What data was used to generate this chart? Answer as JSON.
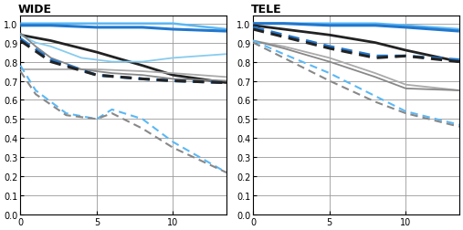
{
  "title_wide": "WIDE",
  "title_tele": "TELE",
  "xlim": [
    0,
    13.5
  ],
  "ylim": [
    0,
    1.04
  ],
  "xticks": [
    0,
    5,
    10
  ],
  "yticks": [
    0,
    0.1,
    0.2,
    0.3,
    0.4,
    0.5,
    0.6,
    0.7,
    0.8,
    0.9,
    1.0
  ],
  "wide_curves": [
    {
      "x": [
        0,
        2,
        5,
        8,
        10,
        13.5
      ],
      "y": [
        1.0,
        1.0,
        1.0,
        1.0,
        1.0,
        0.97
      ],
      "color": "#5bb8f5",
      "lw": 1.8,
      "ls": "solid"
    },
    {
      "x": [
        0,
        2,
        5,
        8,
        10,
        13.5
      ],
      "y": [
        0.99,
        0.99,
        0.98,
        0.98,
        0.97,
        0.96
      ],
      "color": "#2277cc",
      "lw": 2.2,
      "ls": "solid"
    },
    {
      "x": [
        0,
        2,
        5,
        8,
        10,
        13.5
      ],
      "y": [
        0.94,
        0.91,
        0.85,
        0.78,
        0.73,
        0.69
      ],
      "color": "#222222",
      "lw": 2.0,
      "ls": "solid"
    },
    {
      "x": [
        0,
        1,
        2,
        4,
        6,
        8,
        10,
        13.5
      ],
      "y": [
        0.94,
        0.9,
        0.88,
        0.82,
        0.8,
        0.8,
        0.82,
        0.84
      ],
      "color": "#88ccee",
      "lw": 1.3,
      "ls": "solid"
    },
    {
      "x": [
        0,
        2,
        5,
        8,
        10,
        13.5
      ],
      "y": [
        0.76,
        0.76,
        0.76,
        0.75,
        0.74,
        0.72
      ],
      "color": "#aaaaaa",
      "lw": 1.3,
      "ls": "solid"
    },
    {
      "x": [
        0,
        1,
        2,
        4,
        6,
        8,
        10,
        13.5
      ],
      "y": [
        0.95,
        0.88,
        0.82,
        0.76,
        0.74,
        0.73,
        0.71,
        0.7
      ],
      "color": "#888888",
      "lw": 1.3,
      "ls": "solid"
    },
    {
      "x": [
        0,
        2,
        5,
        8,
        10,
        13.5
      ],
      "y": [
        0.92,
        0.81,
        0.73,
        0.71,
        0.7,
        0.69
      ],
      "color": "#2277cc",
      "lw": 2.2,
      "ls": "dashed"
    },
    {
      "x": [
        0,
        2,
        5,
        8,
        10,
        13.5
      ],
      "y": [
        0.91,
        0.8,
        0.73,
        0.71,
        0.7,
        0.69
      ],
      "color": "#222222",
      "lw": 2.2,
      "ls": "dashed"
    },
    {
      "x": [
        0,
        1,
        3,
        5,
        6,
        8,
        10,
        13.5
      ],
      "y": [
        0.78,
        0.65,
        0.53,
        0.5,
        0.55,
        0.5,
        0.38,
        0.22
      ],
      "color": "#5bb8f5",
      "lw": 1.5,
      "ls": "dashed"
    },
    {
      "x": [
        0,
        1,
        3,
        5,
        6,
        8,
        10,
        13.5
      ],
      "y": [
        0.75,
        0.63,
        0.52,
        0.5,
        0.53,
        0.45,
        0.35,
        0.22
      ],
      "color": "#888888",
      "lw": 1.5,
      "ls": "dashed"
    }
  ],
  "tele_curves": [
    {
      "x": [
        0,
        2,
        5,
        8,
        10,
        13.5
      ],
      "y": [
        1.0,
        1.0,
        1.0,
        1.0,
        0.99,
        0.97
      ],
      "color": "#5bb8f5",
      "lw": 1.8,
      "ls": "solid"
    },
    {
      "x": [
        0,
        2,
        5,
        8,
        10,
        13.5
      ],
      "y": [
        1.0,
        1.0,
        0.99,
        0.99,
        0.98,
        0.96
      ],
      "color": "#2277cc",
      "lw": 2.2,
      "ls": "solid"
    },
    {
      "x": [
        0,
        2,
        5,
        8,
        10,
        13.5
      ],
      "y": [
        0.99,
        0.97,
        0.94,
        0.9,
        0.86,
        0.8
      ],
      "color": "#222222",
      "lw": 2.0,
      "ls": "solid"
    },
    {
      "x": [
        0,
        2,
        5,
        8,
        10,
        13.5
      ],
      "y": [
        0.91,
        0.88,
        0.82,
        0.74,
        0.68,
        0.65
      ],
      "color": "#aaaaaa",
      "lw": 1.3,
      "ls": "solid"
    },
    {
      "x": [
        0,
        2,
        5,
        8,
        10,
        13.5
      ],
      "y": [
        0.91,
        0.87,
        0.8,
        0.72,
        0.66,
        0.65
      ],
      "color": "#888888",
      "lw": 1.3,
      "ls": "solid"
    },
    {
      "x": [
        0,
        2,
        5,
        8,
        10,
        13.5
      ],
      "y": [
        0.98,
        0.94,
        0.88,
        0.83,
        0.83,
        0.81
      ],
      "color": "#2277cc",
      "lw": 2.2,
      "ls": "dashed"
    },
    {
      "x": [
        0,
        2,
        5,
        8,
        10,
        13.5
      ],
      "y": [
        0.97,
        0.93,
        0.87,
        0.82,
        0.83,
        0.8
      ],
      "color": "#222222",
      "lw": 2.2,
      "ls": "dashed"
    },
    {
      "x": [
        0,
        2,
        5,
        8,
        10,
        13.5
      ],
      "y": [
        0.91,
        0.84,
        0.74,
        0.62,
        0.54,
        0.47
      ],
      "color": "#5bb8f5",
      "lw": 1.5,
      "ls": "dashed"
    },
    {
      "x": [
        0,
        2,
        5,
        8,
        10,
        13.5
      ],
      "y": [
        0.9,
        0.82,
        0.7,
        0.59,
        0.53,
        0.46
      ],
      "color": "#888888",
      "lw": 1.5,
      "ls": "dashed"
    }
  ],
  "background_color": "#ffffff",
  "grid_color": "#999999",
  "border_color": "#000000",
  "title_fontsize": 9,
  "tick_fontsize": 7
}
